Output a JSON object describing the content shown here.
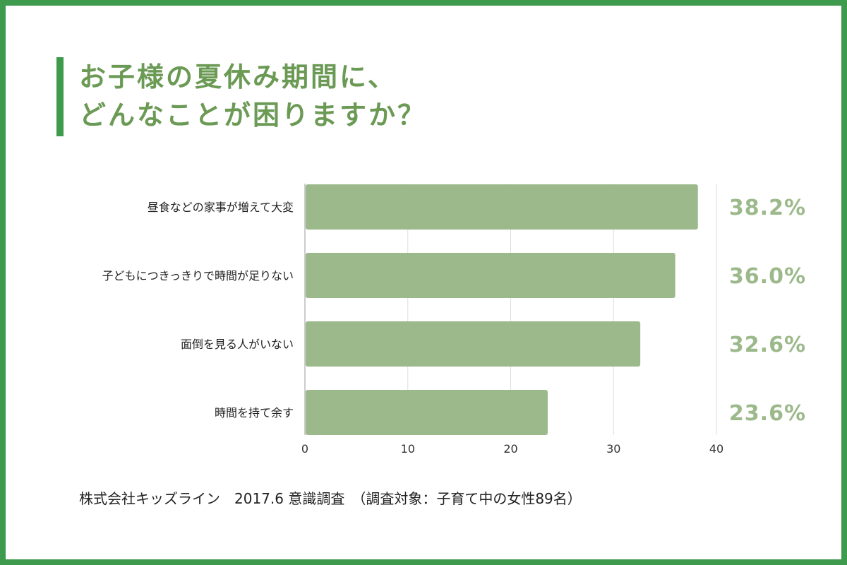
{
  "title": {
    "line1": "お子様の夏休み期間に、",
    "line2": "どんなことが困りますか？"
  },
  "chart_data": {
    "type": "bar",
    "orientation": "horizontal",
    "categories": [
      "昼食などの家事が増えて大変",
      "子どもにつきっきりで時間が足りない",
      "面倒を見る人がいない",
      "時間を持て余す"
    ],
    "values": [
      38.2,
      36.0,
      32.6,
      23.6
    ],
    "value_labels": [
      "38.2%",
      "36.0%",
      "32.6%",
      "23.6%"
    ],
    "x_ticks": [
      "0",
      "10",
      "20",
      "30",
      "40"
    ],
    "xlim": [
      0,
      40
    ],
    "grid": true,
    "colors": {
      "bar": "#9bb98a",
      "value_label": "#9bb98a",
      "grid": "#dddddd",
      "axis": "#999999"
    }
  },
  "footnote": "株式会社キッズライン　2017.6 意識調査　（調査対象：子育て中の女性89名）",
  "colors": {
    "border": "#3e9a4c",
    "accent": "#3e9a4c",
    "title": "#6b9a55"
  }
}
